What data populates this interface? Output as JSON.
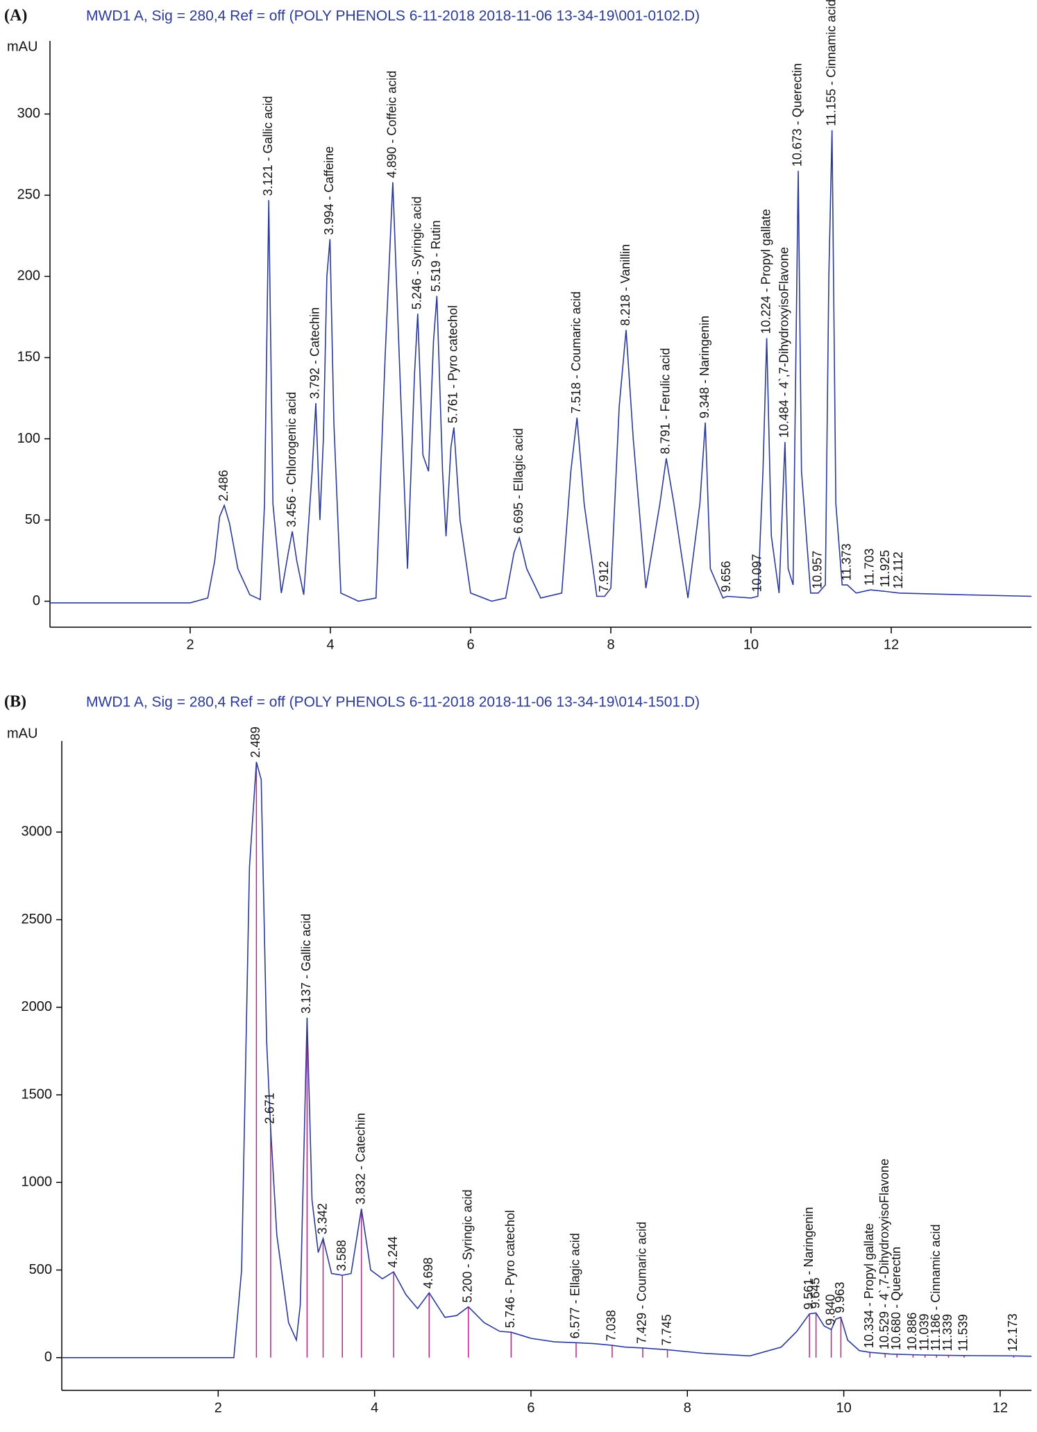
{
  "chart_data": [
    {
      "type": "line",
      "panel_label": "(A)",
      "title": "MWD1 A, Sig = 280,4 Ref = off (POLY PHENOLS 6-11-2018 2018-11-06 13-34-19\\001-0102.D)",
      "ylabel": "mAU",
      "xlim": [
        0,
        14
      ],
      "xticks": [
        2,
        4,
        6,
        8,
        10,
        12
      ],
      "ylim": [
        -16,
        345
      ],
      "yticks": [
        0,
        50,
        100,
        150,
        200,
        250,
        300
      ],
      "drop_lines": false,
      "series": [
        {
          "color": "#2b3a9a",
          "x": [
            0,
            0.5,
            2.0,
            2.25,
            2.35,
            2.42,
            2.486,
            2.56,
            2.68,
            2.85,
            3.0,
            3.06,
            3.121,
            3.18,
            3.3,
            3.4,
            3.456,
            3.52,
            3.62,
            3.74,
            3.792,
            3.85,
            3.9,
            3.95,
            3.994,
            4.05,
            4.15,
            4.4,
            4.65,
            4.78,
            4.89,
            5.0,
            5.1,
            5.2,
            5.246,
            5.32,
            5.4,
            5.47,
            5.519,
            5.6,
            5.65,
            5.72,
            5.761,
            5.85,
            6.0,
            6.3,
            6.5,
            6.62,
            6.695,
            6.8,
            7.0,
            7.3,
            7.43,
            7.518,
            7.62,
            7.8,
            7.912,
            8.0,
            8.12,
            8.218,
            8.32,
            8.5,
            8.7,
            8.791,
            8.9,
            9.1,
            9.27,
            9.348,
            9.42,
            9.6,
            9.656,
            10.0,
            10.097,
            10.17,
            10.224,
            10.29,
            10.4,
            10.45,
            10.484,
            10.53,
            10.6,
            10.64,
            10.673,
            10.72,
            10.85,
            10.957,
            11.06,
            11.11,
            11.155,
            11.21,
            11.3,
            11.373,
            11.5,
            11.703,
            11.925,
            12.112,
            13.0,
            14.0
          ],
          "values": [
            -1,
            -1,
            -1,
            2,
            25,
            52,
            59,
            48,
            20,
            4,
            1,
            60,
            247,
            60,
            5,
            30,
            43,
            25,
            4,
            80,
            122,
            50,
            100,
            200,
            223,
            110,
            5,
            0,
            2,
            150,
            258,
            130,
            20,
            140,
            177,
            90,
            80,
            160,
            188,
            80,
            40,
            95,
            107,
            50,
            5,
            0,
            2,
            30,
            39,
            20,
            2,
            5,
            80,
            113,
            60,
            3,
            3,
            8,
            120,
            167,
            100,
            8,
            60,
            88,
            60,
            2,
            60,
            110,
            20,
            2,
            3,
            2,
            3,
            80,
            162,
            40,
            5,
            60,
            98,
            20,
            10,
            150,
            265,
            80,
            5,
            5,
            10,
            200,
            290,
            60,
            10,
            10,
            5,
            7,
            6,
            5,
            4,
            3
          ]
        }
      ],
      "annotations": [
        {
          "x": 2.486,
          "text": "2.486"
        },
        {
          "x": 3.121,
          "text": "3.121 -  Gallic acid"
        },
        {
          "x": 3.456,
          "text": "3.456 -  Chlorogenic acid"
        },
        {
          "x": 3.792,
          "text": "3.792 -  Catechin"
        },
        {
          "x": 3.994,
          "text": "3.994 -  Caffeine"
        },
        {
          "x": 4.89,
          "text": "4.890 -  Coffeic acid"
        },
        {
          "x": 5.246,
          "text": "5.246 -  Syringic acid"
        },
        {
          "x": 5.519,
          "text": "5.519 -  Rutin"
        },
        {
          "x": 5.761,
          "text": "5.761 -  Pyro catechol"
        },
        {
          "x": 6.695,
          "text": "6.695 -  Ellagic acid"
        },
        {
          "x": 7.518,
          "text": "7.518 -  Coumaric acid"
        },
        {
          "x": 7.912,
          "text": "7.912"
        },
        {
          "x": 8.218,
          "text": "8.218 -  Vanillin"
        },
        {
          "x": 8.791,
          "text": "8.791 -  Ferulic acid"
        },
        {
          "x": 9.348,
          "text": "9.348 -  Naringenin"
        },
        {
          "x": 9.656,
          "text": "9.656"
        },
        {
          "x": 10.097,
          "text": "10.097"
        },
        {
          "x": 10.224,
          "text": "10.224 -  Propyl gallate"
        },
        {
          "x": 10.484,
          "text": "10.484 -  4`,7-DihydroxyisoFlavone"
        },
        {
          "x": 10.673,
          "text": "10.673 -  Querectin"
        },
        {
          "x": 10.957,
          "text": "10.957"
        },
        {
          "x": 11.155,
          "text": "11.155 -  Cinnamic acid"
        },
        {
          "x": 11.373,
          "text": "11.373"
        },
        {
          "x": 11.703,
          "text": "11.703"
        },
        {
          "x": 11.925,
          "text": "11.925"
        },
        {
          "x": 12.112,
          "text": "12.112"
        }
      ]
    },
    {
      "type": "line",
      "panel_label": "(B)",
      "title": "MWD1 A, Sig = 280,4 Ref = off (POLY PHENOLS 6-11-2018 2018-11-06 13-34-19\\014-1501.D)",
      "ylabel": "mAU",
      "xlim": [
        0,
        12.4
      ],
      "xticks": [
        2,
        4,
        6,
        8,
        10,
        12
      ],
      "ylim": [
        -187,
        3520
      ],
      "yticks": [
        0,
        500,
        1000,
        1500,
        2000,
        2500,
        3000
      ],
      "drop_lines": true,
      "series": [
        {
          "color": "#2b3a9a",
          "x": [
            0,
            2.2,
            2.3,
            2.4,
            2.489,
            2.55,
            2.62,
            2.671,
            2.75,
            2.9,
            3.0,
            3.05,
            3.137,
            3.2,
            3.28,
            3.342,
            3.45,
            3.588,
            3.7,
            3.832,
            3.95,
            4.1,
            4.244,
            4.4,
            4.55,
            4.698,
            4.9,
            5.05,
            5.2,
            5.4,
            5.6,
            5.746,
            6.0,
            6.3,
            6.577,
            6.8,
            7.038,
            7.2,
            7.429,
            7.745,
            8.2,
            8.8,
            9.2,
            9.4,
            9.561,
            9.645,
            9.75,
            9.84,
            9.9,
            9.963,
            10.05,
            10.2,
            10.334,
            10.6,
            11.0,
            11.5,
            12.173,
            12.4
          ],
          "values": [
            0,
            0,
            500,
            2800,
            3400,
            3300,
            1800,
            1310,
            700,
            200,
            100,
            300,
            1940,
            900,
            600,
            680,
            480,
            470,
            480,
            850,
            500,
            450,
            490,
            360,
            280,
            370,
            230,
            240,
            290,
            200,
            150,
            145,
            110,
            90,
            85,
            80,
            70,
            60,
            55,
            45,
            25,
            10,
            60,
            150,
            250,
            255,
            180,
            160,
            220,
            230,
            100,
            40,
            30,
            20,
            15,
            12,
            10,
            8
          ]
        }
      ],
      "annotations": [
        {
          "x": 2.489,
          "text": "2.489"
        },
        {
          "x": 2.671,
          "text": "2.671"
        },
        {
          "x": 3.137,
          "text": "3.137 -  Gallic acid"
        },
        {
          "x": 3.342,
          "text": "3.342"
        },
        {
          "x": 3.588,
          "text": "3.588"
        },
        {
          "x": 3.832,
          "text": "3.832 -  Catechin"
        },
        {
          "x": 4.244,
          "text": "4.244"
        },
        {
          "x": 4.698,
          "text": "4.698"
        },
        {
          "x": 5.2,
          "text": "5.200 -  Syringic acid"
        },
        {
          "x": 5.746,
          "text": "5.746 -  Pyro catechol"
        },
        {
          "x": 6.577,
          "text": "6.577 -  Ellagic acid"
        },
        {
          "x": 7.038,
          "text": "7.038"
        },
        {
          "x": 7.429,
          "text": "7.429 -  Coumaric acid"
        },
        {
          "x": 7.745,
          "text": "7.745"
        },
        {
          "x": 9.561,
          "text": "9.561 -  Naringenin"
        },
        {
          "x": 9.645,
          "text": "9.645"
        },
        {
          "x": 9.84,
          "text": "9.840"
        },
        {
          "x": 9.963,
          "text": "9.963"
        },
        {
          "x": 10.334,
          "text": "10.334 -  Propyl gallate"
        },
        {
          "x": 10.529,
          "text": "10.529 -  4`,7-DihydroxyisoFlavone"
        },
        {
          "x": 10.68,
          "text": "10.680 -  Querectin"
        },
        {
          "x": 10.886,
          "text": "10.886"
        },
        {
          "x": 11.039,
          "text": "11.039"
        },
        {
          "x": 11.186,
          "text": "11.186 -  Cinnamic acid"
        },
        {
          "x": 11.339,
          "text": "11.339"
        },
        {
          "x": 11.539,
          "text": "11.539"
        },
        {
          "x": 12.173,
          "text": "12.173"
        }
      ]
    }
  ]
}
